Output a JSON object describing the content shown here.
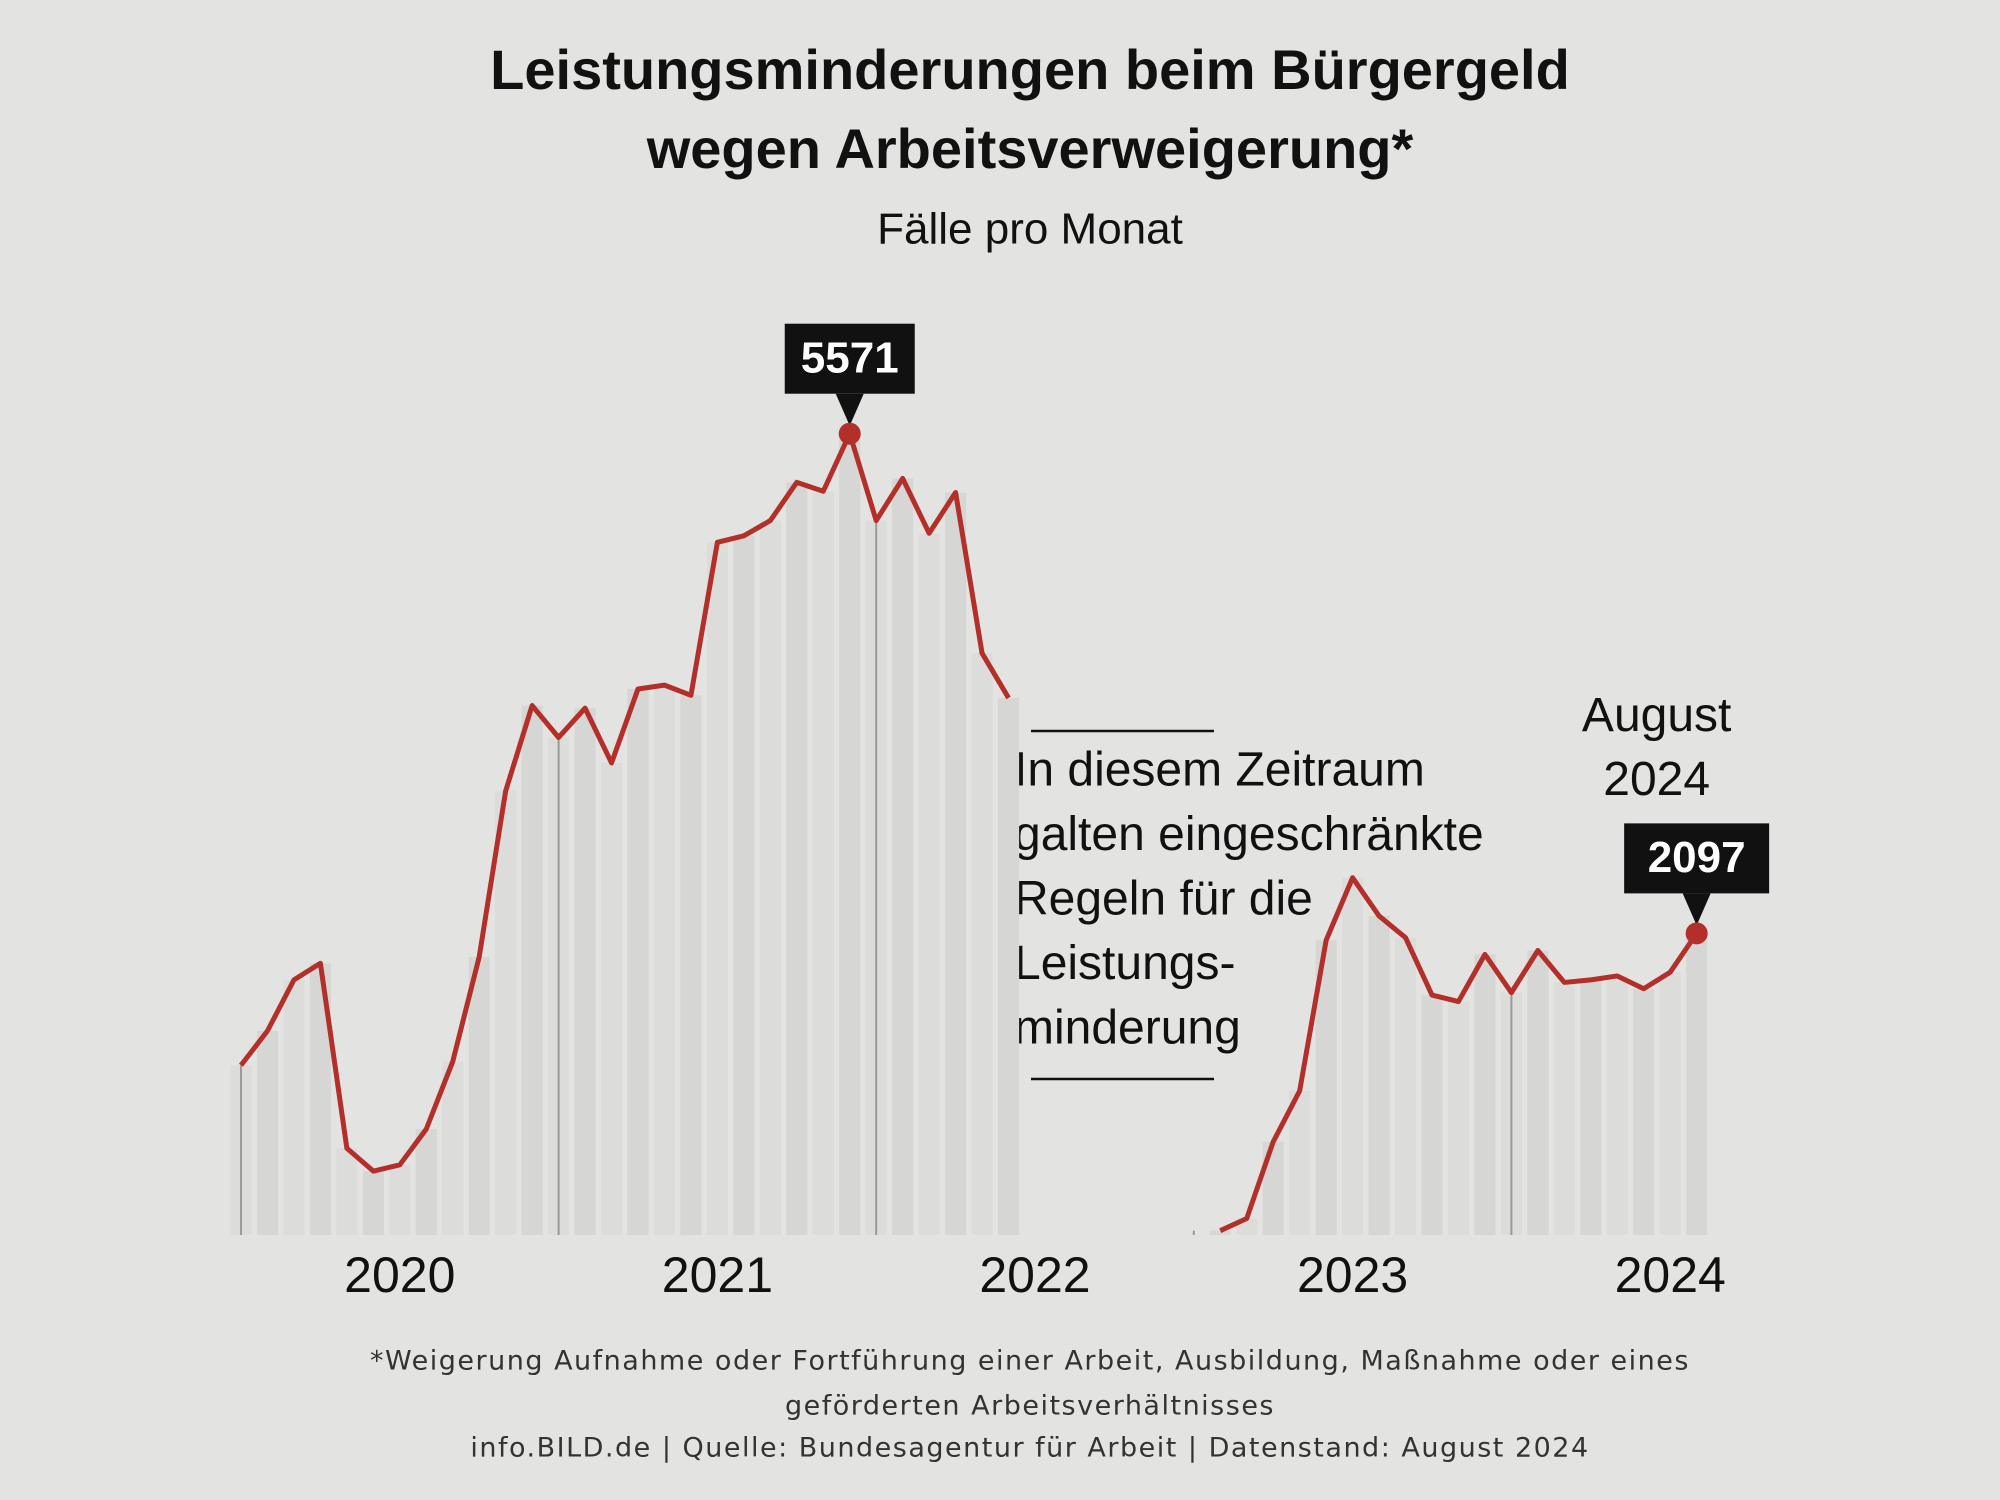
{
  "chart_data": {
    "type": "line",
    "title": [
      "Leistungsminderungen beim Bürgergeld",
      "wegen Arbeitsverweigerung*"
    ],
    "subtitle": "Fälle pro Monat",
    "x": [
      2020,
      2020.0833,
      2020.1667,
      2020.25,
      2020.3333,
      2020.4167,
      2020.5,
      2020.5833,
      2020.6667,
      2020.75,
      2020.8333,
      2020.9167,
      2021,
      2021.0833,
      2021.1667,
      2021.25,
      2021.3333,
      2021.4167,
      2021.5,
      2021.5833,
      2021.6667,
      2021.75,
      2021.8333,
      2021.9167,
      2022,
      2022.0833,
      2022.1667,
      2022.25,
      2022.3333,
      2022.4167,
      2022.5,
      2022.5833,
      2022.6667,
      2022.75,
      2022.8333,
      2022.9167,
      2023,
      2023.0833,
      2023.1667,
      2023.25,
      2023.3333,
      2023.4167,
      2023.5,
      2023.5833,
      2023.6667,
      2023.75,
      2023.8333,
      2023.9167,
      2024,
      2024.0833,
      2024.1667,
      2024.25,
      2024.3333,
      2024.4167,
      2024.5,
      2024.5833
    ],
    "series": [
      {
        "name": "Fälle pro Monat",
        "color": "#b3302a",
        "values": [
          1180,
          1419,
          1774,
          1889,
          603,
          444,
          488,
          736,
          1206,
          1934,
          3087,
          3681,
          3459,
          3663,
          3282,
          3796,
          3823,
          3752,
          4816,
          4861,
          4967,
          5233,
          5171,
          5571,
          4967,
          5260,
          4879,
          5162,
          4045,
          3734,
          null,
          null,
          null,
          null,
          null,
          null,
          null,
          30,
          115,
          648,
          1002,
          2049,
          2484,
          2218,
          2067,
          1668,
          1623,
          1951,
          1685,
          1978,
          1756,
          1774,
          1801,
          1712,
          1827,
          2097
        ]
      }
    ],
    "xlim": [
      2020,
      2025
    ],
    "xticks": [
      2020,
      2021,
      2022,
      2023,
      2024
    ],
    "ylim": [
      0,
      6000
    ],
    "annotation": [
      "In diesem Zeitraum",
      "galten eingeschränkte",
      "Regeln für die",
      "Leistungs-",
      "minderung"
    ],
    "last_point_label": [
      "August",
      "2024"
    ],
    "footnote": [
      "*Weigerung Aufnahme oder Fortführung einer Arbeit, Ausbildung, Maßnahme oder eines",
      "geförderten Arbeitsverhältnisses",
      "info.BILD.de | Quelle: Bundesagentur für Arbeit | Datenstand: August 2024"
    ]
  }
}
